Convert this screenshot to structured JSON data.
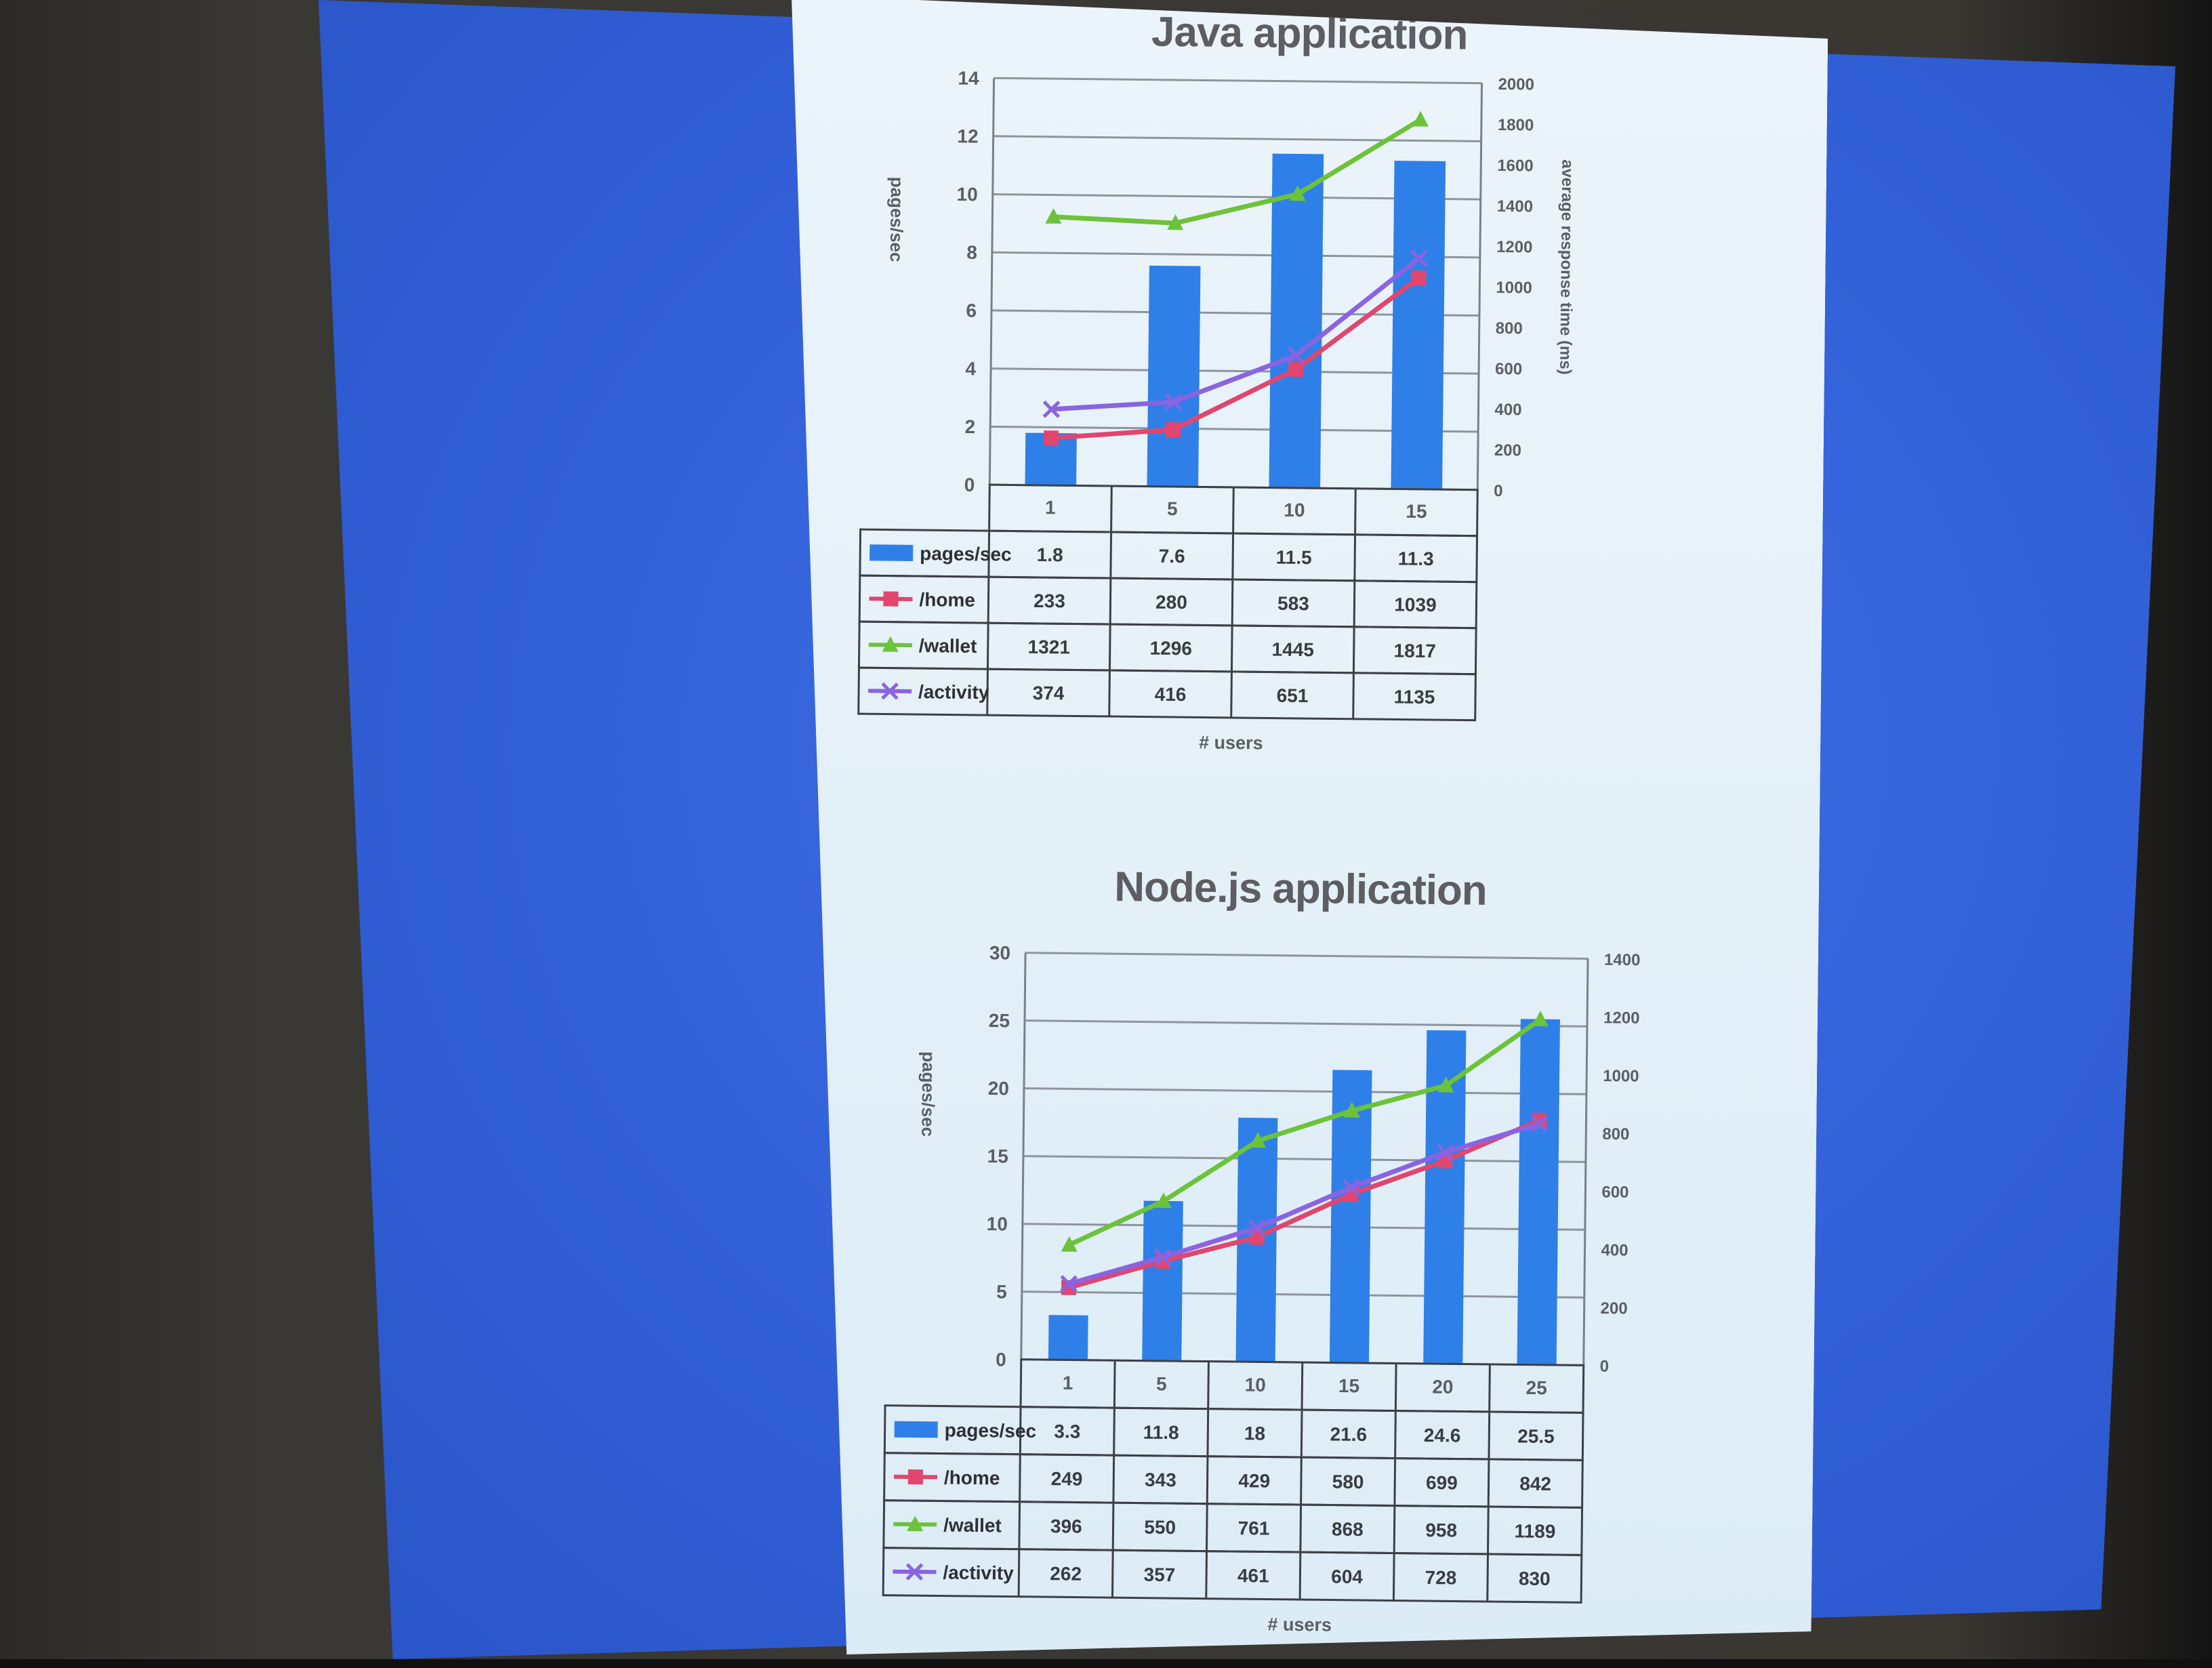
{
  "chart_data": [
    {
      "type": "bar",
      "title": "Java application",
      "xlabel": "# users",
      "ylabel": "pages/sec",
      "y2label": "average response time (ms)",
      "categories": [
        "1",
        "5",
        "10",
        "15"
      ],
      "ylim": [
        0,
        14
      ],
      "yticks": [
        "0",
        "2",
        "4",
        "6",
        "8",
        "10",
        "12",
        "14"
      ],
      "y2lim": [
        0,
        2000
      ],
      "y2ticks": [
        "0",
        "200",
        "400",
        "600",
        "800",
        "1000",
        "1200",
        "1400",
        "1600",
        "1800",
        "2000"
      ],
      "series": [
        {
          "name": "pages/sec",
          "type": "bar",
          "axis": "left",
          "color": "#2f7fe8",
          "marker": "none",
          "values": [
            1.8,
            7.6,
            11.5,
            11.3
          ],
          "labels": [
            "1.8",
            "7.6",
            "11.5",
            "11.3"
          ]
        },
        {
          "name": "/home",
          "type": "line",
          "axis": "right",
          "color": "#e0466e",
          "marker": "square",
          "values": [
            233,
            280,
            583,
            1039
          ],
          "labels": [
            "233",
            "280",
            "583",
            "1039"
          ]
        },
        {
          "name": "/wallet",
          "type": "line",
          "axis": "right",
          "color": "#6cc33a",
          "marker": "triangle",
          "values": [
            1321,
            1296,
            1445,
            1817
          ],
          "labels": [
            "1321",
            "1296",
            "1445",
            "1817"
          ]
        },
        {
          "name": "/activity",
          "type": "line",
          "axis": "right",
          "color": "#8a64e0",
          "marker": "x",
          "values": [
            374,
            416,
            651,
            1135
          ],
          "labels": [
            "374",
            "416",
            "651",
            "1135"
          ]
        }
      ],
      "gridlines": true,
      "legend": "data-table"
    },
    {
      "type": "bar",
      "title": "Node.js application",
      "xlabel": "# users",
      "ylabel": "pages/sec",
      "y2label": "",
      "categories": [
        "1",
        "5",
        "10",
        "15",
        "20",
        "25"
      ],
      "ylim": [
        0,
        30
      ],
      "yticks": [
        "0",
        "5",
        "10",
        "15",
        "20",
        "25",
        "30"
      ],
      "y2lim": [
        0,
        1400
      ],
      "y2ticks": [
        "0",
        "200",
        "400",
        "600",
        "800",
        "1000",
        "1200",
        "1400"
      ],
      "series": [
        {
          "name": "pages/sec",
          "type": "bar",
          "axis": "left",
          "color": "#2f7fe8",
          "marker": "none",
          "values": [
            3.3,
            11.8,
            18,
            21.6,
            24.6,
            25.5
          ],
          "labels": [
            "3.3",
            "11.8",
            "18",
            "21.6",
            "24.6",
            "25.5"
          ]
        },
        {
          "name": "/home",
          "type": "line",
          "axis": "right",
          "color": "#e0466e",
          "marker": "square",
          "values": [
            249,
            343,
            429,
            580,
            699,
            842
          ],
          "labels": [
            "249",
            "343",
            "429",
            "580",
            "699",
            "842"
          ]
        },
        {
          "name": "/wallet",
          "type": "line",
          "axis": "right",
          "color": "#6cc33a",
          "marker": "triangle",
          "values": [
            396,
            550,
            761,
            868,
            958,
            1189
          ],
          "labels": [
            "396",
            "550",
            "761",
            "868",
            "958",
            "1189"
          ]
        },
        {
          "name": "/activity",
          "type": "line",
          "axis": "right",
          "color": "#8a64e0",
          "marker": "x",
          "values": [
            262,
            357,
            461,
            604,
            728,
            830
          ],
          "labels": [
            "262",
            "357",
            "461",
            "604",
            "728",
            "830"
          ]
        }
      ],
      "gridlines": true,
      "legend": "data-table"
    }
  ]
}
